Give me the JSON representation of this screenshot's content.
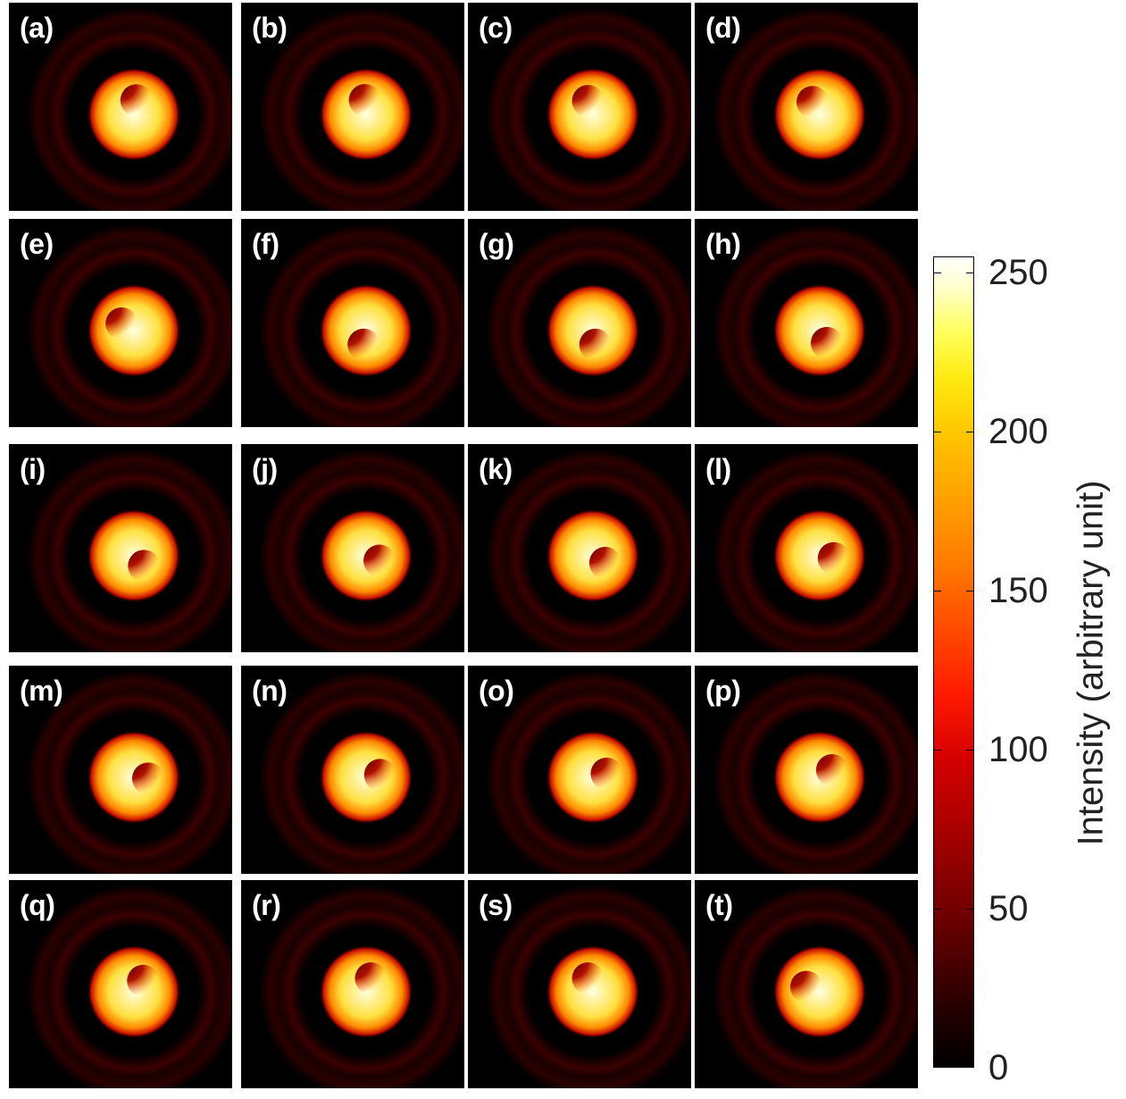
{
  "panels": [
    {
      "label": "(a)",
      "hole_angle_deg": -80
    },
    {
      "label": "(b)",
      "hole_angle_deg": -95
    },
    {
      "label": "(c)",
      "hole_angle_deg": -110
    },
    {
      "label": "(d)",
      "hole_angle_deg": -120
    },
    {
      "label": "(e)",
      "hole_angle_deg": -150
    },
    {
      "label": "(f)",
      "hole_angle_deg": 100
    },
    {
      "label": "(g)",
      "hole_angle_deg": 80
    },
    {
      "label": "(h)",
      "hole_angle_deg": 60
    },
    {
      "label": "(i)",
      "hole_angle_deg": 45
    },
    {
      "label": "(j)",
      "hole_angle_deg": 20
    },
    {
      "label": "(k)",
      "hole_angle_deg": 30
    },
    {
      "label": "(l)",
      "hole_angle_deg": 10
    },
    {
      "label": "(m)",
      "hole_angle_deg": 5
    },
    {
      "label": "(n)",
      "hole_angle_deg": -10
    },
    {
      "label": "(o)",
      "hole_angle_deg": -15
    },
    {
      "label": "(p)",
      "hole_angle_deg": -30
    },
    {
      "label": "(q)",
      "hole_angle_deg": -50
    },
    {
      "label": "(r)",
      "hole_angle_deg": -70
    },
    {
      "label": "(s)",
      "hole_angle_deg": -110
    },
    {
      "label": "(t)",
      "hole_angle_deg": -160
    }
  ],
  "colorbar": {
    "title": "Intensity (arbitrary unit)",
    "min": 0,
    "max": 255,
    "ticks": [
      "0",
      "50",
      "100",
      "150",
      "200",
      "250"
    ],
    "colormap": "hot"
  }
}
